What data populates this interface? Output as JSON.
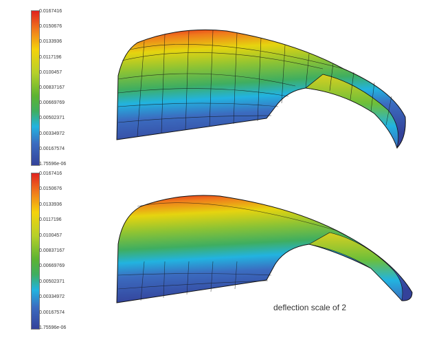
{
  "colorbars": [
    {
      "labels": [
        "0.0167416",
        "0.0150676",
        "0.0133936",
        "0.0117196",
        "0.0100457",
        "0.00837167",
        "0.00669769",
        "0.00502371",
        "0.00334972",
        "0.00167574",
        "1.75596e-06"
      ]
    },
    {
      "labels": [
        "0.0167416",
        "0.0150676",
        "0.0133936",
        "0.0117196",
        "0.0100457",
        "0.00837167",
        "0.00669769",
        "0.00502371",
        "0.00334972",
        "0.00167574",
        "1.75596e-06"
      ]
    }
  ],
  "caption": "deflection scale of  2",
  "colors": {
    "max": "#e0231f",
    "mid": "#5db332",
    "min": "#34429a"
  }
}
